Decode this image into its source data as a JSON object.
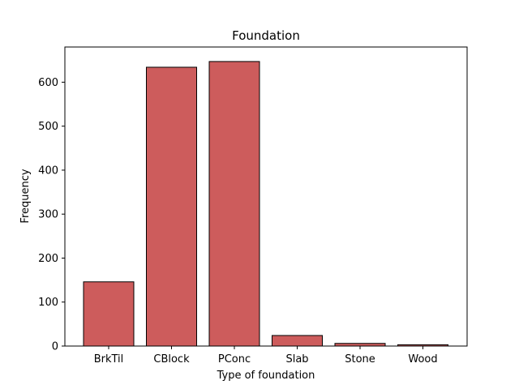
{
  "chart_data": {
    "type": "bar",
    "title": "Foundation",
    "xlabel": "Type of foundation",
    "ylabel": "Frequency",
    "categories": [
      "BrkTil",
      "CBlock",
      "PConc",
      "Slab",
      "Stone",
      "Wood"
    ],
    "values": [
      146,
      634,
      647,
      24,
      6,
      3
    ],
    "ylim": [
      0,
      680
    ],
    "yticks": [
      0,
      100,
      200,
      300,
      400,
      500,
      600
    ],
    "bar_color": "#cd5c5c",
    "edge_color": "#000000",
    "grid": false,
    "legend": "none"
  }
}
